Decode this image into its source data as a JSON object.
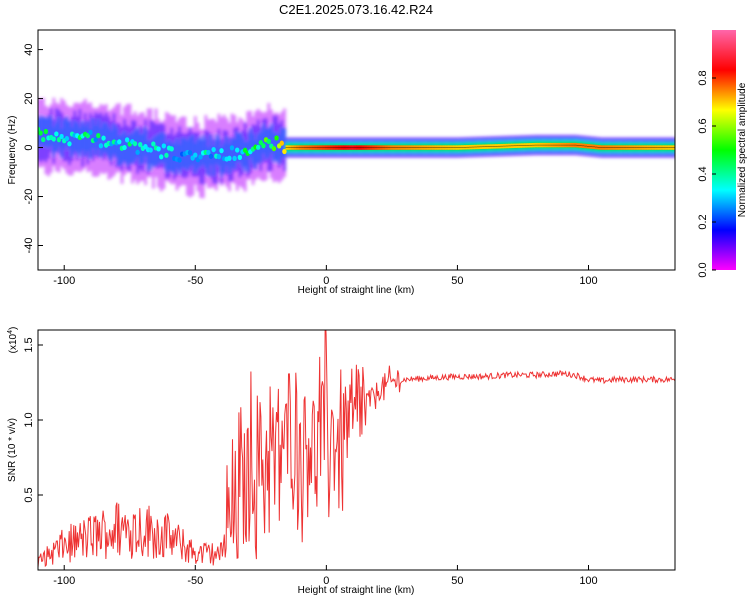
{
  "figure_title": "C2E1.2025.073.16.42.R24",
  "colorbar": {
    "label": "Normalized spectral amplitude",
    "ticks": [
      "0.0",
      "0.2",
      "0.4",
      "0.6",
      "0.8"
    ],
    "tick_values": [
      0.0,
      0.2,
      0.4,
      0.6,
      0.8
    ],
    "range": [
      0,
      1
    ],
    "colors": [
      "#ff00ff",
      "#0000ff",
      "#00ffff",
      "#00ff00",
      "#ffff00",
      "#ff0000",
      "#ff66aa"
    ]
  },
  "chart_data": [
    {
      "type": "heatmap",
      "xlabel": "Height of straight line (km)",
      "ylabel": "Frequency (Hz)",
      "xlim": [
        -110,
        133
      ],
      "ylim": [
        -50,
        48
      ],
      "x_ticks": [
        -100,
        -50,
        0,
        50,
        100
      ],
      "x_tick_labels": [
        "-100",
        "-50",
        "0",
        "50",
        "100"
      ],
      "y_ticks": [
        -40,
        -20,
        0,
        20,
        40
      ],
      "y_tick_labels": [
        "-40",
        "-20",
        "0",
        "20",
        "40"
      ],
      "ridge": {
        "x": [
          -110,
          -100,
          -90,
          -80,
          -70,
          -60,
          -50,
          -40,
          -30,
          -20,
          -15,
          -10,
          0,
          10,
          25,
          50,
          80,
          95,
          105,
          133
        ],
        "frequency": [
          5,
          4,
          4,
          2,
          0,
          -2,
          -4,
          -3,
          -1,
          2,
          0,
          0,
          0,
          0,
          0,
          0,
          1,
          1,
          0,
          0
        ],
        "amplitude": [
          0.4,
          0.4,
          0.35,
          0.35,
          0.35,
          0.3,
          0.3,
          0.35,
          0.4,
          0.5,
          0.7,
          0.75,
          0.8,
          0.85,
          0.75,
          0.7,
          0.7,
          0.75,
          0.75,
          0.7
        ]
      }
    },
    {
      "type": "line",
      "xlabel": "Height of straight line (km)",
      "ylabel": "SNR (10 * v/v)",
      "y_scale_label": "(x10",
      "y_scale_exponent": "4",
      "y_scale_close": ")",
      "xlim": [
        -110,
        133
      ],
      "ylim": [
        0,
        1.6
      ],
      "x_ticks": [
        -100,
        -50,
        0,
        50,
        100
      ],
      "x_tick_labels": [
        "-100",
        "-50",
        "0",
        "50",
        "100"
      ],
      "y_ticks": [
        0.5,
        1.0,
        1.5
      ],
      "y_tick_labels": [
        "0.5",
        "1.0",
        "1.5"
      ],
      "color": "#ee3333",
      "series": [
        {
          "x": [
            -110,
            -100,
            -90,
            -80,
            -70,
            -60,
            -50,
            -40,
            -35,
            -30,
            -25,
            -20,
            -15,
            -10,
            -5,
            0,
            5,
            10,
            15,
            20,
            25,
            30,
            40,
            50,
            60,
            70,
            80,
            90,
            95,
            100,
            105,
            110,
            120,
            133
          ],
          "values": [
            0.05,
            0.15,
            0.2,
            0.25,
            0.25,
            0.2,
            0.1,
            0.1,
            0.35,
            0.6,
            0.7,
            0.8,
            0.85,
            0.9,
            0.9,
            0.95,
            0.9,
            0.95,
            1.1,
            1.2,
            1.25,
            1.27,
            1.28,
            1.29,
            1.29,
            1.3,
            1.3,
            1.31,
            1.3,
            1.27,
            1.26,
            1.27,
            1.27,
            1.27
          ]
        }
      ]
    }
  ]
}
